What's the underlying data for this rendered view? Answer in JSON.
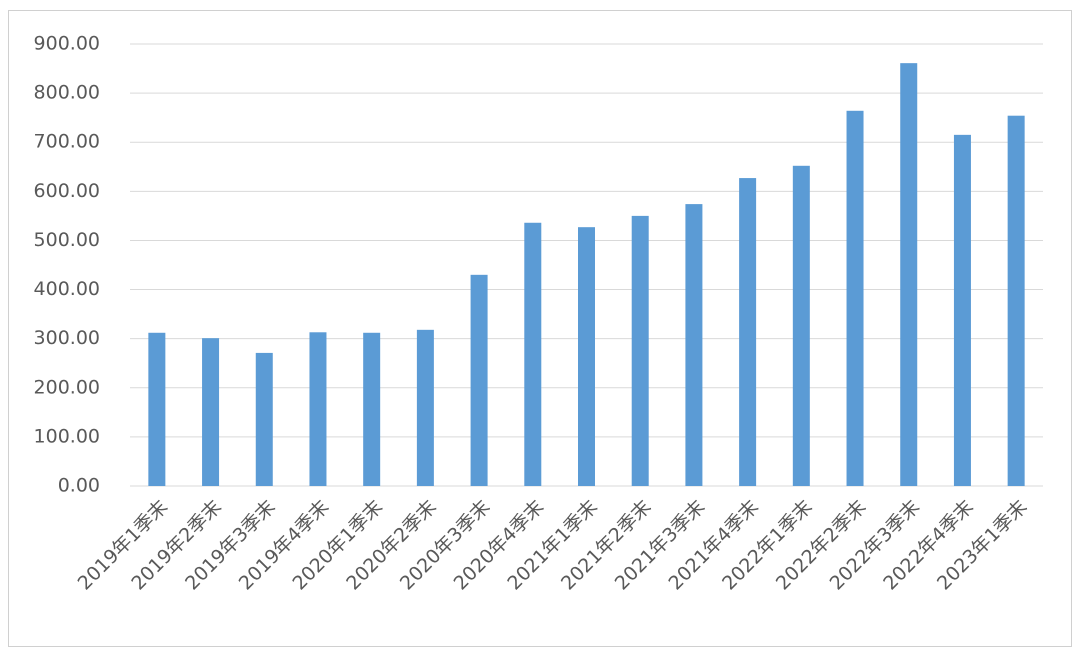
{
  "chart_data": {
    "type": "bar",
    "categories": [
      "2019年1季末",
      "2019年2季末",
      "2019年3季末",
      "2019年4季末",
      "2020年1季末",
      "2020年2季末",
      "2020年3季末",
      "2020年4季末",
      "2021年1季末",
      "2021年2季末",
      "2021年3季末",
      "2021年4季末",
      "2022年1季末",
      "2022年2季末",
      "2022年3季末",
      "2022年4季末",
      "2023年1季末"
    ],
    "values": [
      312,
      301,
      271,
      313,
      312,
      318,
      430,
      536,
      527,
      550,
      574,
      627,
      652,
      764,
      861,
      715,
      754
    ],
    "color": "#5b9bd5",
    "ylim": [
      0,
      900
    ],
    "yticks": [
      {
        "value": 0,
        "label": "0.00"
      },
      {
        "value": 100,
        "label": "100.00"
      },
      {
        "value": 200,
        "label": "200.00"
      },
      {
        "value": 300,
        "label": "300.00"
      },
      {
        "value": 400,
        "label": "400.00"
      },
      {
        "value": 500,
        "label": "500.00"
      },
      {
        "value": 600,
        "label": "600.00"
      },
      {
        "value": 700,
        "label": "700.00"
      },
      {
        "value": 800,
        "label": "800.00"
      },
      {
        "value": 900,
        "label": "900.00"
      }
    ],
    "grid": true
  }
}
